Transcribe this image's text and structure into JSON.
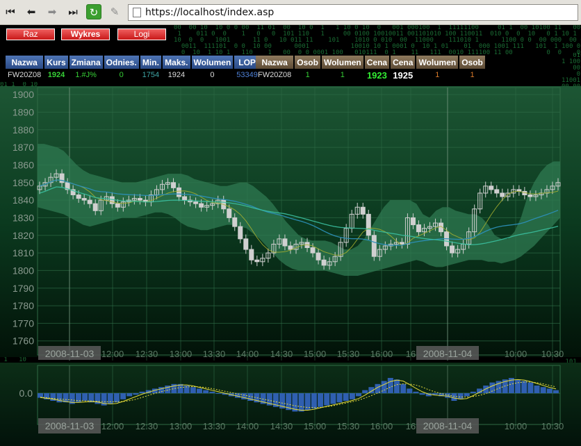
{
  "browser": {
    "url": "https://localhost/index.asp"
  },
  "nav": {
    "raz": "Raz",
    "wykres": "Wykres",
    "logi": "Logi"
  },
  "quote_table": {
    "headers": [
      "Nazwa",
      "Kurs",
      "Zmiana",
      "Odnies.",
      "Min.",
      "Maks.",
      "Wolumen",
      "LOP"
    ],
    "row": [
      "FW20Z08",
      "1924",
      "1.#J%",
      "0",
      "1754",
      "1924",
      "0",
      "53349"
    ]
  },
  "order_table": {
    "headers": [
      "Nazwa",
      "Osob",
      "Wolumen",
      "Cena",
      "Cena",
      "Wolumen",
      "Osob"
    ],
    "row": [
      "FW20Z08",
      "1",
      "1",
      "1923",
      "1925",
      "1",
      "1"
    ]
  },
  "colors": {
    "background": "#000000",
    "chart_bg": "#0b3a1f",
    "band": "#2f7a52",
    "candle": "#d0d0d0",
    "ma_short": "#a8b030",
    "ma_long_1": "#2c8fb8",
    "ma_long_2": "#3bc0a0",
    "histogram": "#2f5fb0",
    "signal_line": "#e6dc3c"
  },
  "chart_data": [
    {
      "type": "candlestick",
      "y_ticks": [
        1900,
        1890,
        1880,
        1870,
        1860,
        1850,
        1840,
        1830,
        1820,
        1810,
        1800,
        1790,
        1780,
        1770,
        1760
      ],
      "ylim": [
        1752,
        1904
      ],
      "x_ticks": [
        "2008-11-03",
        "12:00",
        "12:30",
        "13:00",
        "13:30",
        "14:00",
        "14:30",
        "15:00",
        "15:30",
        "16:00",
        "16",
        "2008-11-04",
        "10:00",
        "10:30"
      ],
      "close": [
        1848,
        1850,
        1853,
        1855,
        1850,
        1846,
        1843,
        1841,
        1840,
        1838,
        1834,
        1840,
        1842,
        1838,
        1836,
        1839,
        1840,
        1841,
        1840,
        1839,
        1843,
        1846,
        1849,
        1850,
        1847,
        1842,
        1840,
        1839,
        1838,
        1836,
        1837,
        1838,
        1840,
        1835,
        1830,
        1825,
        1818,
        1812,
        1806,
        1805,
        1807,
        1810,
        1815,
        1818,
        1814,
        1812,
        1815,
        1816,
        1813,
        1810,
        1806,
        1803,
        1805,
        1808,
        1816,
        1824,
        1832,
        1836,
        1832,
        1820,
        1808,
        1812,
        1814,
        1815,
        1816,
        1815,
        1830,
        1826,
        1822,
        1824,
        1825,
        1827,
        1822,
        1814,
        1810,
        1812,
        1815,
        1822,
        1835,
        1844,
        1848,
        1846,
        1844,
        1842,
        1844,
        1846,
        1845,
        1843,
        1842,
        1843,
        1844,
        1846,
        1848,
        1850
      ],
      "band_upper": [
        1872,
        1872,
        1871,
        1870,
        1868,
        1864,
        1860,
        1857,
        1855,
        1854,
        1853,
        1852,
        1851,
        1850,
        1850,
        1850,
        1851,
        1852,
        1853,
        1854,
        1855,
        1855,
        1855,
        1854,
        1852,
        1851,
        1850,
        1849,
        1848,
        1848,
        1849,
        1850,
        1850,
        1848,
        1845,
        1842,
        1838,
        1833,
        1828,
        1824,
        1820,
        1818,
        1817,
        1817,
        1817,
        1816,
        1814,
        1812,
        1812,
        1814,
        1818,
        1824,
        1830,
        1836,
        1840,
        1840,
        1840,
        1840,
        1838,
        1832,
        1830,
        1834,
        1836,
        1836,
        1834,
        1833,
        1832,
        1832,
        1830,
        1826,
        1820,
        1818,
        1818,
        1822,
        1830,
        1842,
        1850,
        1856,
        1860,
        1862,
        1862
      ],
      "band_lower": [
        1836,
        1835,
        1834,
        1833,
        1832,
        1830,
        1828,
        1826,
        1825,
        1826,
        1827,
        1828,
        1829,
        1830,
        1830,
        1830,
        1831,
        1832,
        1833,
        1833,
        1832,
        1830,
        1827,
        1825,
        1824,
        1823,
        1823,
        1824,
        1825,
        1826,
        1826,
        1825,
        1824,
        1821,
        1818,
        1814,
        1810,
        1806,
        1803,
        1801,
        1800,
        1800,
        1800,
        1800,
        1800,
        1799,
        1798,
        1797,
        1797,
        1797,
        1798,
        1799,
        1800,
        1801,
        1802,
        1803,
        1804,
        1805,
        1806,
        1805,
        1803,
        1802,
        1802,
        1803,
        1804,
        1805,
        1806,
        1806,
        1806,
        1805,
        1805,
        1804,
        1805,
        1806,
        1808,
        1811,
        1814,
        1818,
        1822,
        1826,
        1830
      ]
    },
    {
      "type": "histogram",
      "y_ticks": [
        "0.0"
      ],
      "x_ticks": [
        "2008-11-03",
        "12:00",
        "12:30",
        "13:00",
        "13:30",
        "14:00",
        "14:30",
        "15:00",
        "15:30",
        "16:00",
        "16",
        "2008-11-04",
        "10:00",
        "10:30"
      ],
      "values": [
        -3,
        -4,
        -5,
        -6,
        -6,
        -7,
        -6,
        -5,
        -6,
        -7,
        -8,
        -7,
        -6,
        -4,
        -2,
        -1,
        1,
        2,
        3,
        4,
        5,
        6,
        6,
        5,
        4,
        3,
        2,
        1,
        0,
        -1,
        -2,
        -3,
        -4,
        -5,
        -6,
        -7,
        -8,
        -9,
        -10,
        -11,
        -12,
        -12,
        -11,
        -10,
        -9,
        -8,
        -7,
        -6,
        -5,
        -4,
        -2,
        2,
        4,
        6,
        8,
        10,
        9,
        6,
        3,
        1,
        -1,
        -2,
        -1,
        -2,
        -3,
        -5,
        -4,
        -2,
        1,
        3,
        5,
        7,
        8,
        9,
        10,
        9,
        8,
        7,
        5,
        4,
        3,
        2
      ]
    }
  ]
}
